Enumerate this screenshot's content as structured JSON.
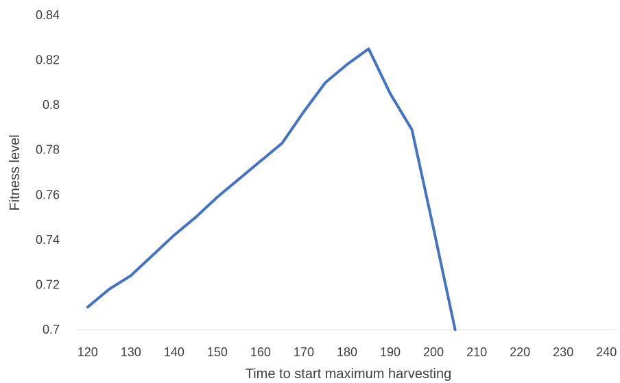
{
  "chart_data": {
    "type": "line",
    "title": "",
    "xlabel": "Time to start maximum harvesting",
    "ylabel": "Fitness level",
    "x_ticks": [
      120,
      130,
      140,
      150,
      160,
      170,
      180,
      190,
      200,
      210,
      220,
      230,
      240
    ],
    "y_ticks": [
      "0.84",
      "0.82",
      "0.8",
      "0.78",
      "0.76",
      "0.74",
      "0.72",
      "0.7"
    ],
    "xlim": [
      117.5,
      242.5
    ],
    "ylim": [
      0.7,
      0.84
    ],
    "grid": false,
    "legend": "none",
    "series": [
      {
        "color": "#4472C4",
        "x": [
          120,
          125,
          130,
          135,
          140,
          145,
          150,
          155,
          160,
          165,
          170,
          175,
          180,
          185,
          190,
          195,
          200,
          205
        ],
        "y": [
          0.71,
          0.718,
          0.724,
          0.733,
          0.742,
          0.75,
          0.759,
          0.767,
          0.775,
          0.783,
          0.797,
          0.81,
          0.818,
          0.825,
          0.805,
          0.789,
          0.745,
          0.7
        ]
      }
    ]
  }
}
